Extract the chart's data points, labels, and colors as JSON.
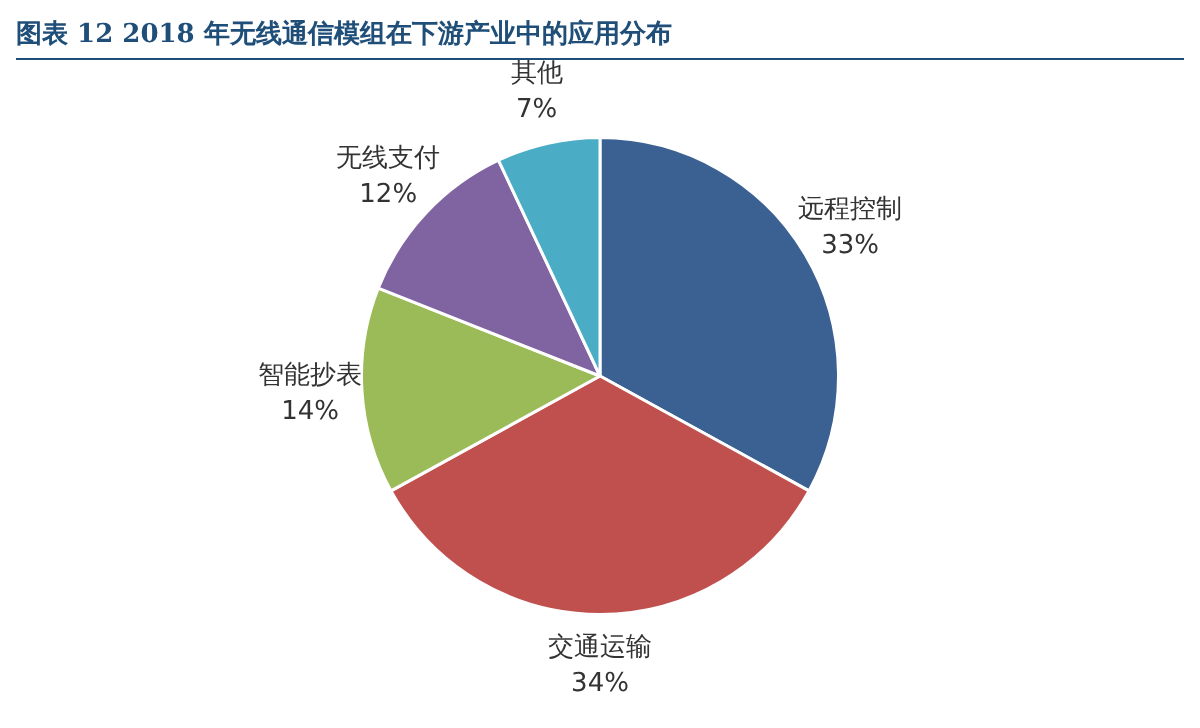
{
  "chart_data": {
    "type": "pie",
    "title": "图表 12 2018 年无线通信模组在下游产业中的应用分布",
    "categories": [
      "远程控制",
      "交通运输",
      "智能抄表",
      "无线支付",
      "其他"
    ],
    "values": [
      33,
      34,
      14,
      12,
      7
    ],
    "colors": [
      "#3b6193",
      "#c0504d",
      "#9bbb59",
      "#8064a2",
      "#4bacc6"
    ],
    "value_labels": [
      "33%",
      "34%",
      "14%",
      "12%",
      "7%"
    ],
    "legend": false
  }
}
